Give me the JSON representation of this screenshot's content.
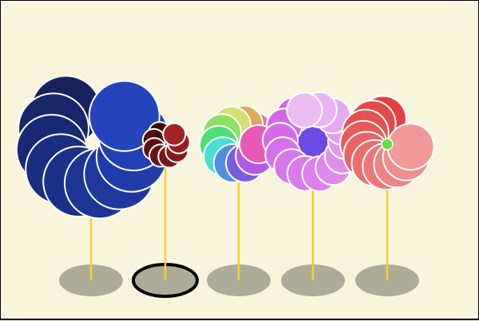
{
  "colors": {
    "background": "#f9f5dd",
    "stem": "#f6d230",
    "base": "#adac99",
    "selection_outline": "#000000",
    "petal_stroke": "#ffffff",
    "center_marker": "#66dd44"
  },
  "selected_index": 1,
  "flowers": [
    {
      "name": "navy-flower",
      "petals": [
        "#16235f",
        "#17276a",
        "#182a74",
        "#1a2e7f",
        "#1b3189",
        "#1d3594",
        "#1e389e",
        "#203ca9",
        "#2140b3",
        "#2443bd"
      ]
    },
    {
      "name": "maroon-flower",
      "petals": [
        "#3b0808",
        "#4a0c0c",
        "#591010",
        "#681414",
        "#771818",
        "#861c1c",
        "#951f1f",
        "#a42424"
      ]
    },
    {
      "name": "rainbow-flower",
      "petals": [
        "#e37f9a",
        "#e0a85c",
        "#d5e070",
        "#8ee067",
        "#4edf76",
        "#48e0ce",
        "#4e8fe0",
        "#7b5ce0",
        "#b35ae0",
        "#ea58b6"
      ]
    },
    {
      "name": "violet-flower",
      "petals": [
        "#d162e6",
        "#d267e7",
        "#d46ce8",
        "#d571e8",
        "#d776e9",
        "#d97cea",
        "#db82eb",
        "#dd89ec",
        "#df90ed",
        "#e197ee",
        "#e49fef",
        "#e6a9f0",
        "#e9b3f1",
        "#ebbdf3"
      ]
    },
    {
      "name": "salmon-flower",
      "petals": [
        "#e4403f",
        "#e54947",
        "#e65251",
        "#e75b5a",
        "#e86464",
        "#ea6e6d",
        "#eb7877",
        "#ed8382",
        "#ee8e8d",
        "#f0999a"
      ]
    }
  ]
}
